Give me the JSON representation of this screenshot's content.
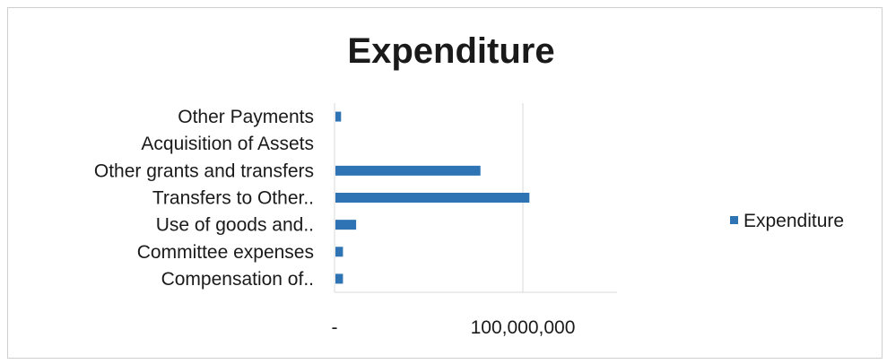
{
  "chart_data": {
    "type": "bar",
    "orientation": "horizontal",
    "title": "Expenditure",
    "categories": [
      "Other Payments",
      "Acquisition of Assets",
      "Other grants and transfers",
      "Transfers to Other..",
      "Use of goods and..",
      "Committee expenses",
      "Compensation of.."
    ],
    "series": [
      {
        "name": "Expenditure",
        "values": [
          3000000,
          0,
          77000000,
          103000000,
          11000000,
          4000000,
          4000000
        ]
      }
    ],
    "xlim": [
      0,
      150000000
    ],
    "x_ticks": [
      {
        "value": 0,
        "label": "-"
      },
      {
        "value": 100000000,
        "label": "100,000,000"
      }
    ],
    "grid": true,
    "legend_position": "right",
    "colors": {
      "bar": "#2e74b5",
      "grid": "#d9d9d9",
      "text": "#1a1a1a"
    }
  }
}
